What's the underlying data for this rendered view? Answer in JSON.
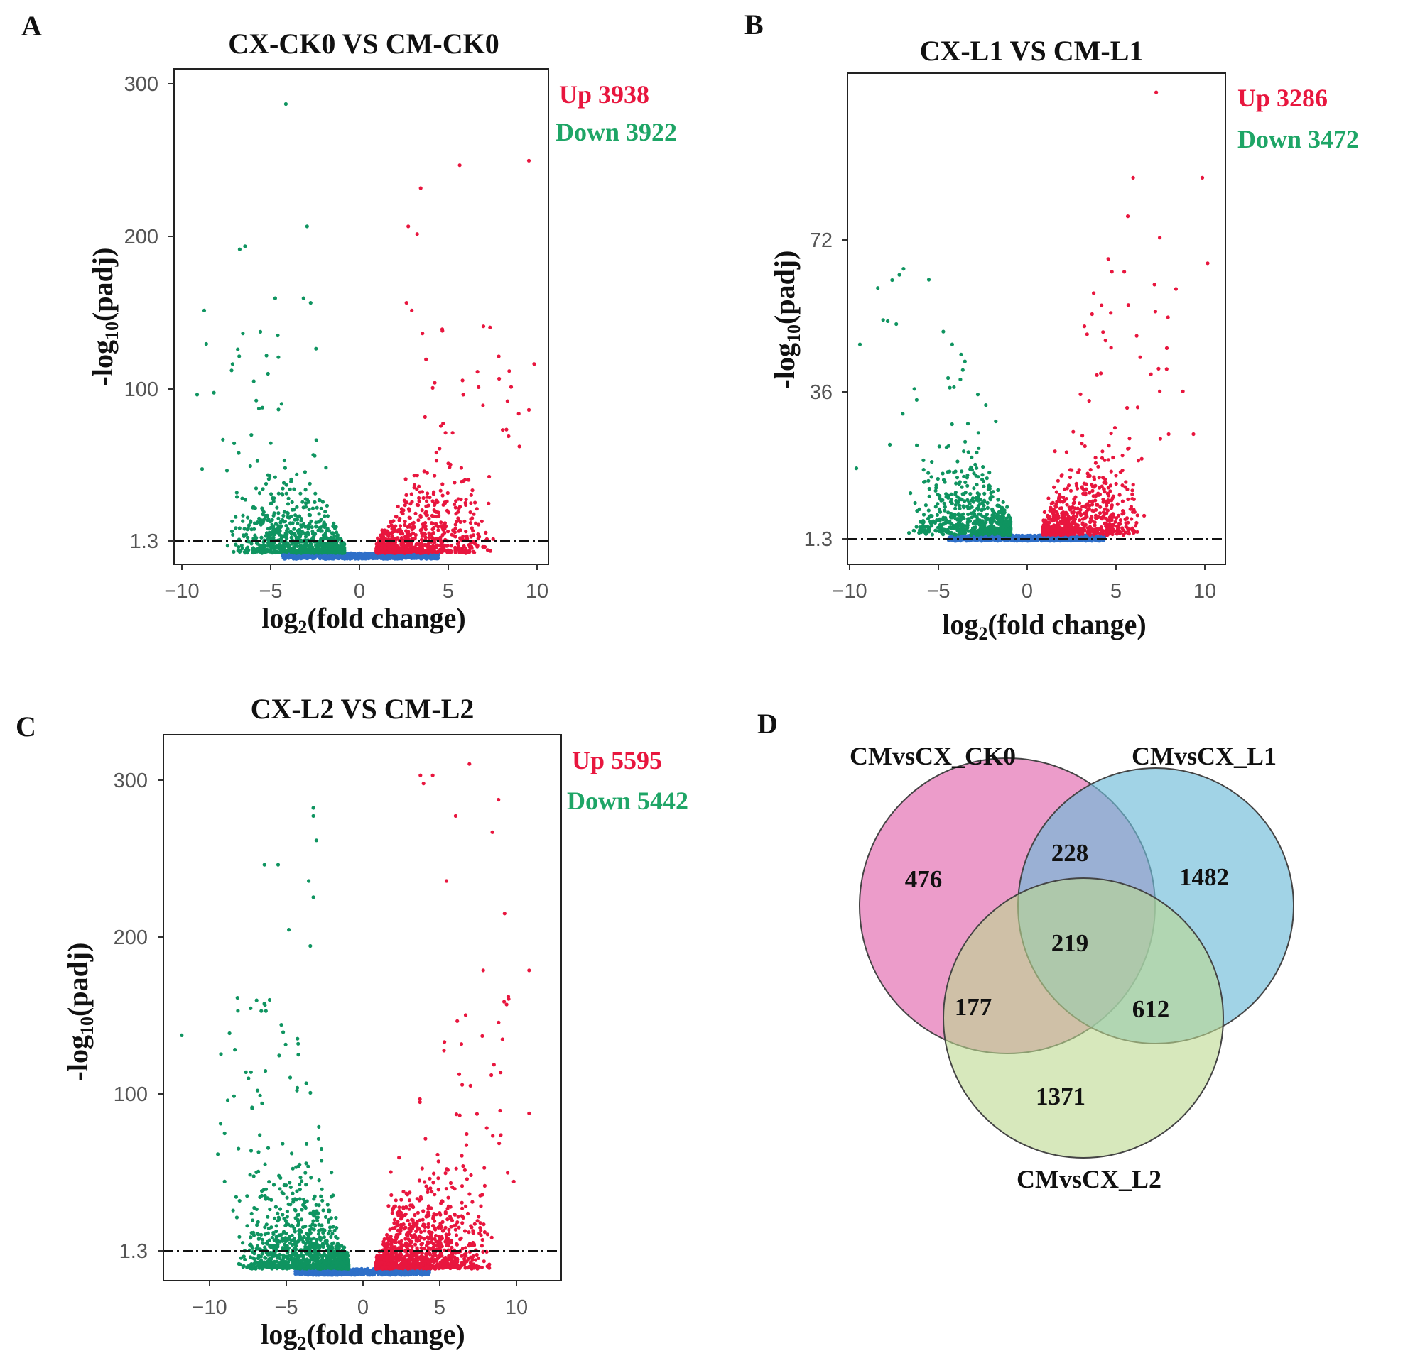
{
  "colors": {
    "up": "#e8163e",
    "down": "#0f9460",
    "ns": "#2e6fc8",
    "threshold": "#111111",
    "venn_a": "#e57bb8",
    "venn_b": "#6fbcd8",
    "venn_c": "#bcd98f"
  },
  "chart_data": [
    {
      "panel": "A",
      "type": "scatter",
      "title": "CX-CK0 VS CM-CK0",
      "xlabel": "log",
      "xlabel_sub": "2",
      "xlabel_rest": "(fold change)",
      "ylabel": "-log",
      "ylabel_sub": "10",
      "ylabel_rest": "(padj)",
      "xlim": [
        -10.5,
        10.6
      ],
      "ylim": [
        -6,
        318
      ],
      "xticks": [
        -10,
        -5,
        0,
        5,
        10
      ],
      "xtick_labels": [
        "−10",
        "−5",
        "0",
        "5",
        "10"
      ],
      "yticks": [
        1.3,
        100,
        200,
        300
      ],
      "ytick_labels": [
        "1.3",
        "100",
        "200",
        "300"
      ],
      "threshold": 1.3,
      "up_label": "Up 3938",
      "down_label": "Down 3922",
      "up_count": 3938,
      "down_count": 3922,
      "shape": {
        "spread": 4.2,
        "peak": 62,
        "tailN": 60,
        "seed": 11
      },
      "highlights": [
        [
          -4.2,
          295
        ],
        [
          -6.5,
          202
        ],
        [
          -6.8,
          200
        ],
        [
          -3,
          215
        ],
        [
          -8.8,
          160
        ],
        [
          -4.8,
          168
        ],
        [
          -3.2,
          168
        ],
        [
          -2.8,
          165
        ],
        [
          -9.2,
          105
        ],
        [
          -7.2,
          125
        ],
        [
          -2.5,
          135
        ],
        [
          2.7,
          215
        ],
        [
          3.2,
          210
        ],
        [
          3.4,
          240
        ],
        [
          5.6,
          255
        ],
        [
          9.5,
          258
        ],
        [
          9.8,
          125
        ],
        [
          9.5,
          95
        ],
        [
          7.8,
          130
        ],
        [
          6.6,
          120
        ],
        [
          5.8,
          105
        ],
        [
          4.8,
          80
        ],
        [
          5.2,
          80
        ],
        [
          2.6,
          165
        ],
        [
          2.9,
          160
        ],
        [
          3.5,
          145
        ],
        [
          8.5,
          110
        ]
      ]
    },
    {
      "panel": "B",
      "type": "scatter",
      "title": "CX-L1 VS CM-L1",
      "xlabel": "log",
      "xlabel_sub": "2",
      "xlabel_rest": "(fold change)",
      "ylabel": "-log",
      "ylabel_sub": "10",
      "ylabel_rest": "(padj)",
      "xlim": [
        -10.1,
        11.2
      ],
      "ylim": [
        -5.5,
        109.5
      ],
      "xticks": [
        -10,
        -5,
        0,
        5,
        10
      ],
      "xtick_labels": [
        "−10",
        "−5",
        "0",
        "5",
        "10"
      ],
      "yticks": [
        1.3,
        36,
        72
      ],
      "ytick_labels": [
        "1.3",
        "36",
        "72"
      ],
      "threshold": 1.3,
      "up_label": "Up 3286",
      "down_label": "Down 3472",
      "up_count": 3286,
      "down_count": 3472,
      "shape": {
        "spread": 3.7,
        "peak": 26,
        "tailN": 50,
        "seed": 23
      },
      "highlights": [
        [
          7.3,
          105
        ],
        [
          6,
          85
        ],
        [
          9.9,
          85
        ],
        [
          5.7,
          76
        ],
        [
          7.5,
          71
        ],
        [
          10.2,
          65
        ],
        [
          7.2,
          60
        ],
        [
          4.6,
          66
        ],
        [
          4.8,
          63
        ],
        [
          5.5,
          63
        ],
        [
          6.2,
          48
        ],
        [
          6.4,
          43
        ],
        [
          7,
          39
        ],
        [
          7.5,
          35
        ],
        [
          8.8,
          35
        ],
        [
          9.4,
          25
        ],
        [
          8,
          25
        ],
        [
          -9.4,
          46
        ],
        [
          -4.7,
          49
        ],
        [
          -4.2,
          46
        ],
        [
          -3.6,
          40
        ],
        [
          -6.2,
          33
        ],
        [
          -9.6,
          17
        ],
        [
          -4.1,
          36
        ]
      ]
    },
    {
      "panel": "C",
      "type": "scatter",
      "title": "CX-L2 VS CM-L2",
      "xlabel": "log",
      "xlabel_sub": "2",
      "xlabel_rest": "(fold change)",
      "ylabel": "-log",
      "ylabel_sub": "10",
      "ylabel_rest": "(padj)",
      "xlim": [
        -13,
        13
      ],
      "ylim": [
        -6,
        330
      ],
      "xticks": [
        -10,
        -5,
        0,
        5,
        10
      ],
      "xtick_labels": [
        "−10",
        "−5",
        "0",
        "5",
        "10"
      ],
      "yticks": [
        1.3,
        100,
        200,
        300
      ],
      "ytick_labels": [
        "1.3",
        "100",
        "200",
        "300"
      ],
      "threshold": 1.3,
      "up_label": "Up 5595",
      "down_label": "Down 5442",
      "up_count": 5595,
      "down_count": 5442,
      "shape": {
        "spread": 4.8,
        "peak": 70,
        "tailN": 110,
        "seed": 37
      },
      "highlights": [
        [
          -3.2,
          285
        ],
        [
          -3.2,
          280
        ],
        [
          -3,
          265
        ],
        [
          -6.4,
          250
        ],
        [
          -5.5,
          250
        ],
        [
          -3.5,
          240
        ],
        [
          -3.2,
          230
        ],
        [
          -4.8,
          210
        ],
        [
          -3.4,
          200
        ],
        [
          -11.8,
          145
        ],
        [
          -6.6,
          160
        ],
        [
          -6.3,
          160
        ],
        [
          -8.8,
          105
        ],
        [
          -7.2,
          100
        ],
        [
          -9,
          55
        ],
        [
          3.8,
          305
        ],
        [
          4.6,
          305
        ],
        [
          7,
          312
        ],
        [
          4,
          300
        ],
        [
          8.9,
          290
        ],
        [
          6.1,
          280
        ],
        [
          8.5,
          270
        ],
        [
          5.5,
          240
        ],
        [
          9.3,
          220
        ],
        [
          10.9,
          185
        ],
        [
          10.9,
          97
        ],
        [
          9.9,
          55
        ],
        [
          7.9,
          185
        ]
      ]
    },
    {
      "panel": "D",
      "type": "venn",
      "sets": [
        "CMvsCX_CK0",
        "CMvsCX_L1",
        "CMvsCX_L2"
      ],
      "regions": {
        "ck0_only": 476,
        "l1_only": 1482,
        "l2_only": 1371,
        "ck0_l1": 228,
        "ck0_l2": 177,
        "l1_l2": 612,
        "all": 219
      }
    }
  ]
}
